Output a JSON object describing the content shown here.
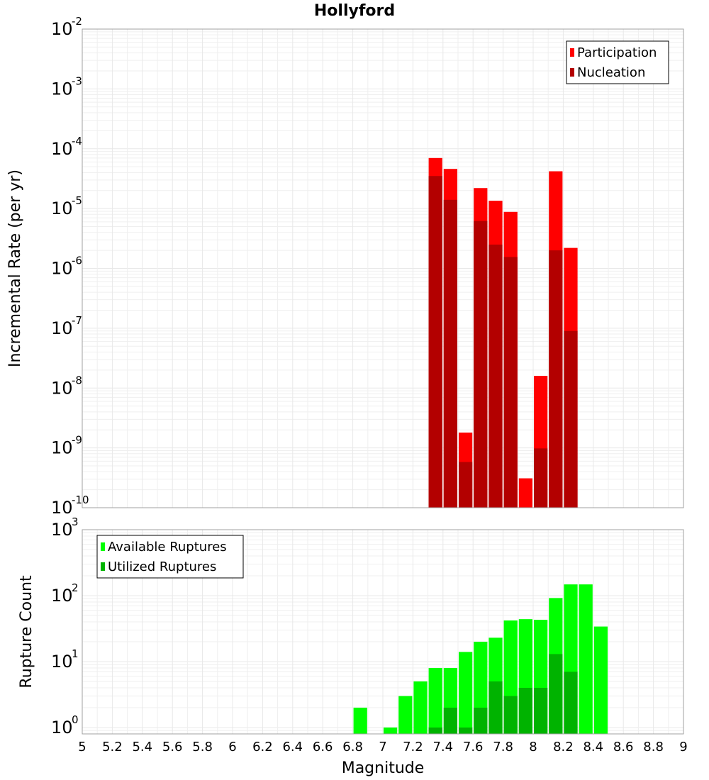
{
  "chart_data": [
    {
      "type": "bar",
      "title": "Hollyford",
      "xlabel": "",
      "ylabel": "Incremental Rate (per yr)",
      "yscale": "log",
      "xlim": [
        5,
        9
      ],
      "ylim": [
        1e-10,
        0.01
      ],
      "y_tick_exponents": [
        -10,
        -9,
        -8,
        -7,
        -6,
        -5,
        -4,
        -3,
        -2
      ],
      "bar_width": 0.1,
      "legend_position": "top-right",
      "series": [
        {
          "name": "Participation",
          "color": "#ff0000",
          "x": [
            7.35,
            7.45,
            7.55,
            7.65,
            7.75,
            7.85,
            7.95,
            8.05,
            8.15,
            8.25
          ],
          "values": [
            7e-05,
            4.6e-05,
            1.8e-09,
            2.2e-05,
            1.35e-05,
            8.8e-06,
            3.1e-10,
            1.6e-08,
            4.2e-05,
            2.2e-06
          ]
        },
        {
          "name": "Nucleation",
          "color": "#b30000",
          "x": [
            7.35,
            7.45,
            7.55,
            7.65,
            7.75,
            7.85,
            7.95,
            8.05,
            8.15,
            8.25
          ],
          "values": [
            3.5e-05,
            1.4e-05,
            5.8e-10,
            6.2e-06,
            2.5e-06,
            1.55e-06,
            null,
            9.8e-10,
            2e-06,
            9e-08
          ]
        }
      ]
    },
    {
      "type": "bar",
      "xlabel": "Magnitude",
      "ylabel": "Rupture Count",
      "yscale": "log",
      "xlim": [
        5,
        9
      ],
      "ylim": [
        0.8,
        1000
      ],
      "y_tick_exponents": [
        0,
        1,
        2,
        3
      ],
      "x_ticks": [
        "5",
        "5.2",
        "5.4",
        "5.6",
        "5.8",
        "6",
        "6.2",
        "6.4",
        "6.6",
        "6.8",
        "7",
        "7.2",
        "7.4",
        "7.6",
        "7.8",
        "8",
        "8.2",
        "8.4",
        "8.6",
        "8.8",
        "9"
      ],
      "bar_width": 0.1,
      "legend_position": "top-left",
      "series": [
        {
          "name": "Available Ruptures",
          "color": "#00ff00",
          "x": [
            6.85,
            7.05,
            7.15,
            7.25,
            7.35,
            7.45,
            7.55,
            7.65,
            7.75,
            7.85,
            7.95,
            8.05,
            8.15,
            8.25,
            8.35,
            8.45
          ],
          "values": [
            2,
            1,
            3,
            5,
            8,
            8,
            14,
            20,
            23,
            42,
            44,
            43,
            92,
            148,
            148,
            34
          ]
        },
        {
          "name": "Utilized Ruptures",
          "color": "#00b300",
          "x": [
            7.35,
            7.45,
            7.55,
            7.65,
            7.75,
            7.85,
            7.95,
            8.05,
            8.15,
            8.25
          ],
          "values": [
            1,
            2,
            1,
            2,
            5,
            3,
            4,
            4,
            13,
            7
          ]
        }
      ]
    }
  ]
}
